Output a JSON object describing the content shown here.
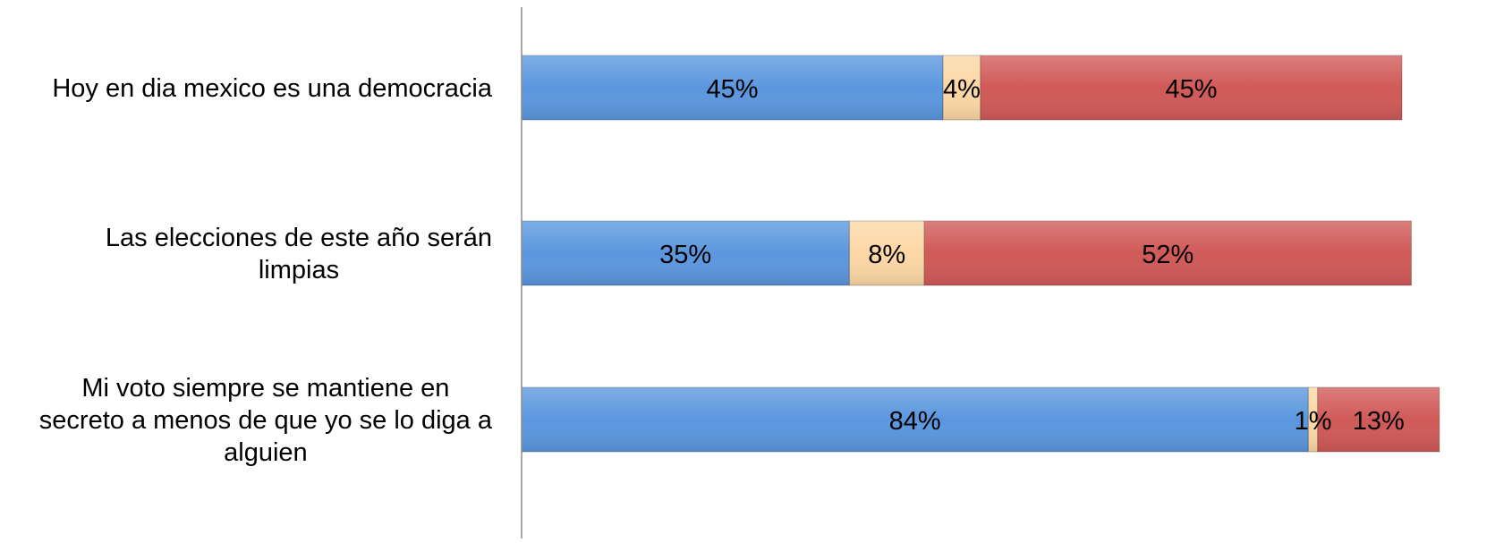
{
  "chart_data": {
    "type": "bar",
    "orientation": "horizontal",
    "stacked": true,
    "categories": [
      "Hoy en dia mexico es una democracia",
      "Las elecciones de este año serán limpias",
      "Mi voto siempre se mantiene en secreto a menos de que yo se lo diga a alguien"
    ],
    "category_lines": [
      [
        "Hoy en dia mexico es una democracia"
      ],
      [
        "Las elecciones de este año serán",
        "limpias"
      ],
      [
        "Mi voto siempre se mantiene en",
        "secreto a menos de que yo se lo diga a",
        "alguien"
      ]
    ],
    "series": [
      {
        "values": [
          45,
          35,
          84
        ],
        "labels": [
          "45%",
          "35%",
          "84%"
        ],
        "color": "#5b97de"
      },
      {
        "values": [
          4,
          8,
          1
        ],
        "labels": [
          "4%",
          "8%",
          "1%"
        ],
        "color": "#fcd7a5"
      },
      {
        "values": [
          45,
          52,
          13
        ],
        "labels": [
          "45%",
          "52%",
          "13%"
        ],
        "color": "#d05a58"
      }
    ],
    "xlim": [
      0,
      94
    ],
    "grid": false,
    "legend": "none",
    "xlabel": "",
    "ylabel": "",
    "title": ""
  }
}
